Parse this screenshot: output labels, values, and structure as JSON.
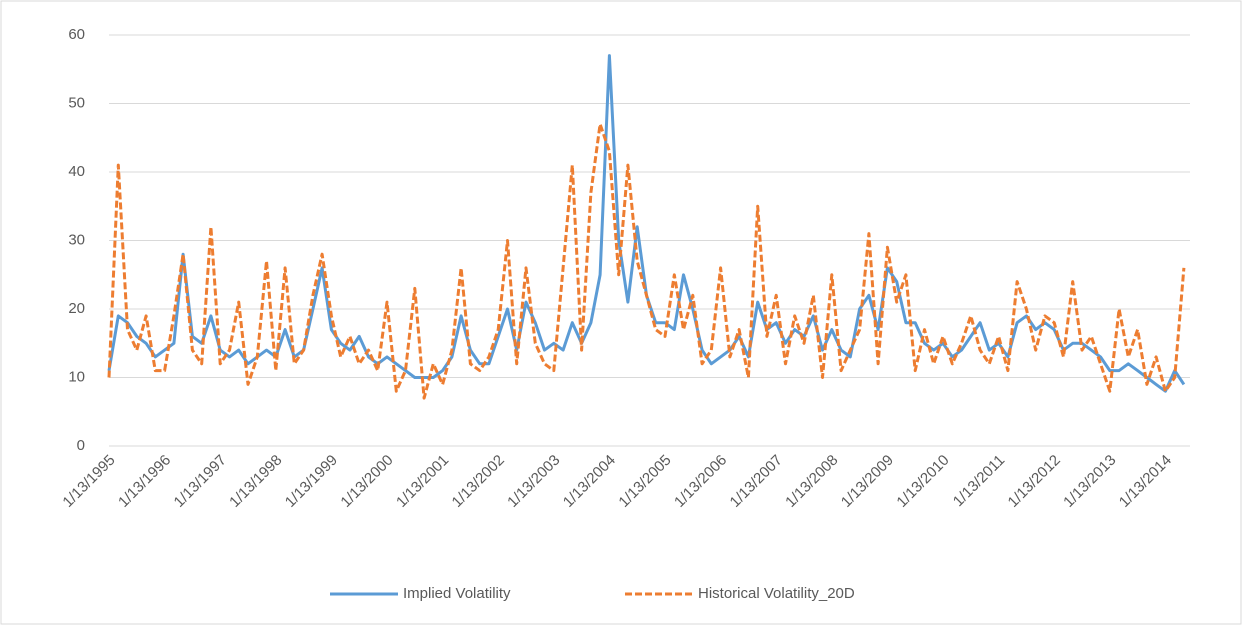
{
  "chart_data": {
    "type": "line",
    "categories": [
      "1/13/1995",
      null,
      null,
      null,
      null,
      null,
      "1/13/1996",
      null,
      null,
      null,
      null,
      null,
      "1/13/1997",
      null,
      null,
      null,
      null,
      null,
      "1/13/1998",
      null,
      null,
      null,
      null,
      null,
      "1/13/1999",
      null,
      null,
      null,
      null,
      null,
      "1/13/2000",
      null,
      null,
      null,
      null,
      null,
      "1/13/2001",
      null,
      null,
      null,
      null,
      null,
      "1/13/2002",
      null,
      null,
      null,
      null,
      null,
      "1/13/2003",
      null,
      null,
      null,
      null,
      null,
      "1/13/2004",
      null,
      null,
      null,
      null,
      null,
      "1/13/2005",
      null,
      null,
      null,
      null,
      null,
      "1/13/2006",
      null,
      null,
      null,
      null,
      null,
      "1/13/2007",
      null,
      null,
      null,
      null,
      null,
      "1/13/2008",
      null,
      null,
      null,
      null,
      null,
      "1/13/2009",
      null,
      null,
      null,
      null,
      null,
      "1/13/2010",
      null,
      null,
      null,
      null,
      null,
      "1/13/2011",
      null,
      null,
      null,
      null,
      null,
      "1/13/2012",
      null,
      null,
      null,
      null,
      null,
      "1/13/2013",
      null,
      null,
      null,
      null,
      null,
      "1/13/2014",
      null,
      null
    ],
    "series": [
      {
        "name": "Implied Volatility",
        "color": "#5b9bd5",
        "style": "solid",
        "values": [
          11,
          19,
          18,
          16,
          15,
          13,
          14,
          15,
          28,
          16,
          15,
          19,
          14,
          13,
          14,
          12,
          13,
          14,
          13,
          17,
          13,
          14,
          20,
          26,
          17,
          15,
          14,
          16,
          13,
          12,
          13,
          12,
          11,
          10,
          10,
          10,
          11,
          13,
          19,
          14,
          12,
          12,
          16,
          20,
          14,
          21,
          18,
          14,
          15,
          14,
          18,
          15,
          18,
          25,
          57,
          30,
          21,
          32,
          22,
          18,
          18,
          17,
          25,
          20,
          14,
          12,
          13,
          14,
          16,
          13,
          21,
          17,
          18,
          15,
          17,
          16,
          19,
          14,
          17,
          14,
          13,
          20,
          22,
          17,
          26,
          24,
          18,
          18,
          15,
          14,
          15,
          13,
          14,
          16,
          18,
          14,
          15,
          13,
          18,
          19,
          17,
          18,
          17,
          14,
          15,
          15,
          14,
          13,
          11,
          11,
          12,
          11,
          10,
          9,
          8,
          11,
          9
        ]
      },
      {
        "name": "Historical Volatility_20D",
        "color": "#ed7d31",
        "style": "dashed",
        "values": [
          10,
          41,
          17,
          14,
          19,
          11,
          11,
          19,
          28,
          14,
          12,
          32,
          12,
          14,
          21,
          9,
          13,
          27,
          11,
          26,
          12,
          14,
          22,
          28,
          19,
          13,
          16,
          12,
          14,
          11,
          21,
          8,
          11,
          23,
          7,
          12,
          9,
          14,
          26,
          12,
          11,
          13,
          17,
          30,
          12,
          26,
          15,
          12,
          11,
          26,
          41,
          14,
          37,
          47,
          43,
          25,
          41,
          27,
          22,
          17,
          16,
          25,
          17,
          22,
          12,
          14,
          26,
          13,
          17,
          10,
          35,
          16,
          22,
          12,
          19,
          15,
          22,
          10,
          25,
          11,
          14,
          17,
          31,
          12,
          29,
          21,
          25,
          11,
          17,
          12,
          16,
          12,
          15,
          19,
          14,
          12,
          16,
          11,
          24,
          20,
          14,
          19,
          18,
          13,
          24,
          14,
          16,
          12,
          8,
          20,
          13,
          17,
          9,
          13,
          8,
          10,
          26
        ]
      }
    ],
    "ylim": [
      0,
      60
    ],
    "yticks": [
      0,
      10,
      20,
      30,
      40,
      50,
      60
    ],
    "grid": true,
    "legend": "bottom"
  }
}
